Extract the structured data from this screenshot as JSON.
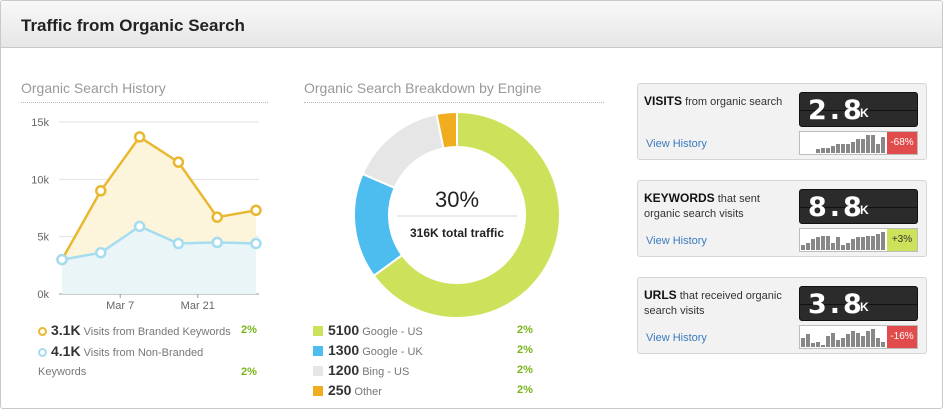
{
  "header": {
    "title": "Traffic from Organic Search"
  },
  "history": {
    "title": "Organic Search History",
    "legend": [
      {
        "value": "3.1K",
        "label": "Visits from Branded Keywords",
        "pct": "2%",
        "color": "#e8b830"
      },
      {
        "value": "4.1K",
        "label": "Visits from Non-Branded",
        "label2": "Keywords",
        "pct": "2%",
        "color": "#a6dcef"
      }
    ]
  },
  "breakdown": {
    "title": "Organic Search Breakdown by Engine",
    "center_value": "30%",
    "center_label": "316K total traffic",
    "legend": [
      {
        "value": "5100",
        "label": "Google - US",
        "pct": "2%",
        "color": "#cde25a"
      },
      {
        "value": "1300",
        "label": "Google - UK",
        "pct": "2%",
        "color": "#4dbdf0"
      },
      {
        "value": "1200",
        "label": "Bing - US",
        "pct": "2%",
        "color": "#e6e6e6"
      },
      {
        "value": "250",
        "label": "Other",
        "pct": "2%",
        "color": "#f0ad1f"
      }
    ]
  },
  "cards": [
    {
      "bold": "VISITS",
      "rest": " from organic search",
      "digits": "2.8",
      "unit": "K",
      "link": "View History",
      "badge": "-68%",
      "badge_color": "#e24b4b",
      "bars": [
        2,
        3,
        3,
        4,
        5,
        5,
        5,
        6,
        8,
        8,
        10,
        10,
        5,
        9
      ]
    },
    {
      "bold": "KEYWORDS",
      "rest": " that sent organic search visits",
      "digits": "8.8",
      "unit": "K",
      "link": "View History",
      "badge": "+3%",
      "badge_color": "#cde25a",
      "bars": [
        3,
        4,
        6,
        7,
        8,
        8,
        4,
        7,
        3,
        4,
        6,
        7,
        7,
        8,
        8,
        9,
        10
      ]
    },
    {
      "bold": "URLS",
      "rest": " that received organic search visits",
      "digits": "3.8",
      "unit": "K",
      "link": "View History",
      "badge": "-16%",
      "badge_color": "#e24b4b",
      "bars": [
        5,
        7,
        2,
        3,
        1,
        6,
        8,
        4,
        5,
        7,
        9,
        8,
        6,
        9,
        10,
        5,
        3
      ]
    }
  ],
  "chart_data": [
    {
      "type": "line",
      "title": "Organic Search History",
      "x_ticks": [
        "Mar 7",
        "Mar 21"
      ],
      "y_ticks": [
        "0k",
        "5k",
        "10k",
        "15k"
      ],
      "ylim": [
        0,
        15000
      ],
      "series": [
        {
          "name": "Visits from Branded Keywords",
          "color": "#e8b830",
          "values": [
            3000,
            9000,
            13700,
            11500,
            6700,
            7300
          ]
        },
        {
          "name": "Visits from Non-Branded Keywords",
          "color": "#a6dcef",
          "values": [
            3000,
            3600,
            5900,
            4400,
            4500,
            4400
          ]
        }
      ]
    },
    {
      "type": "pie",
      "title": "Organic Search Breakdown by Engine",
      "slices": [
        {
          "name": "Google - US",
          "value": 5100,
          "color": "#cde25a"
        },
        {
          "name": "Google - UK",
          "value": 1300,
          "color": "#4dbdf0"
        },
        {
          "name": "Bing - US",
          "value": 1200,
          "color": "#e6e6e6"
        },
        {
          "name": "Other",
          "value": 250,
          "color": "#f0ad1f"
        }
      ]
    }
  ]
}
